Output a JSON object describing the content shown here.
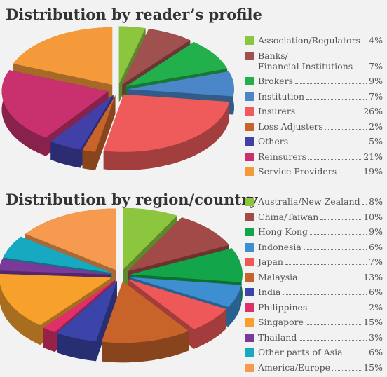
{
  "chart_data": [
    {
      "type": "pie",
      "title": "Distribution by reader’s profile",
      "categories": [
        "Association/Regulators",
        "Banks/\nFinancial Institutions",
        "Brokers",
        "Institution",
        "Insurers",
        "Loss Adjusters",
        "Others",
        "Reinsurers",
        "Service Providers"
      ],
      "values": [
        4,
        7,
        9,
        7,
        26,
        2,
        5,
        21,
        19
      ],
      "value_labels": [
        "4%",
        "7%",
        "9%",
        "7%",
        "26%",
        "2%",
        "5%",
        "21%",
        "19%"
      ],
      "colors": [
        "#8cc63f",
        "#a0504f",
        "#22b04c",
        "#4a86c8",
        "#ef5b5b",
        "#c8642a",
        "#4040a8",
        "#c8306e",
        "#f59a3a"
      ]
    },
    {
      "type": "pie",
      "title": "Distribution by region/country",
      "categories": [
        "Australia/New Zealand",
        "China/Taiwan",
        "Hong Kong",
        "Indonesia",
        "Japan",
        "Malaysia",
        "India",
        "Philippines",
        "Singapore",
        "Thailand",
        "Other parts of Asia",
        "America/Europe"
      ],
      "values": [
        8,
        10,
        9,
        6,
        7,
        13,
        6,
        2,
        15,
        3,
        6,
        15
      ],
      "value_labels": [
        "8%",
        "10%",
        "9%",
        "6%",
        "7%",
        "13%",
        "6%",
        "2%",
        "15%",
        "3%",
        "6%",
        "15%"
      ],
      "colors": [
        "#8cc63f",
        "#a24a48",
        "#13a54a",
        "#3d8fd1",
        "#ef5858",
        "#c8642a",
        "#3b44a8",
        "#e0306a",
        "#f7a12c",
        "#7a3a9a",
        "#17a9c2",
        "#f59a4e"
      ]
    }
  ]
}
